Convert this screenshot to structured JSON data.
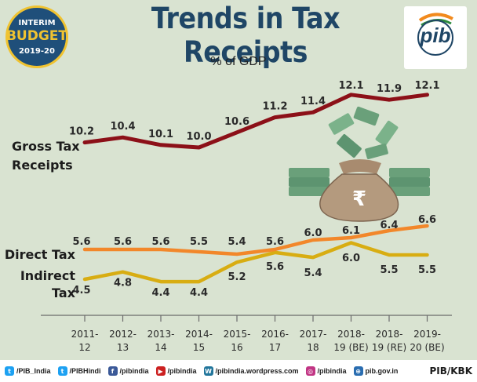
{
  "header": {
    "title": "Trends in Tax Receipts",
    "subtitle": "% of GDP",
    "badge": {
      "line1": "INTERIM",
      "line2": "BUDGET",
      "line3": "2019-20"
    },
    "logo_text": "pib"
  },
  "colors": {
    "background": "#d9e3d1",
    "gross": "#8c1018",
    "direct": "#f2872a",
    "indirect": "#d8ad12",
    "title": "#1f4666"
  },
  "chart_data": {
    "type": "line",
    "title": "Trends in Tax Receipts",
    "subtitle": "% of GDP",
    "categories": [
      "2011-12",
      "2012-13",
      "2013-14",
      "2014-15",
      "2015-16",
      "2016-17",
      "2017-18",
      "2018-19 (BE)",
      "2018-19 (RE)",
      "2019-20 (BE)"
    ],
    "tick_labels": [
      [
        "2011-",
        "12"
      ],
      [
        "2012-",
        "13"
      ],
      [
        "2013-",
        "14"
      ],
      [
        "2014-",
        "15"
      ],
      [
        "2015-",
        "16"
      ],
      [
        "2016-",
        "17"
      ],
      [
        "2017-",
        "18"
      ],
      [
        "2018-",
        "19 (BE)"
      ],
      [
        "2018-",
        "19 (RE)"
      ],
      [
        "2019-",
        "20 (BE)"
      ]
    ],
    "series": [
      {
        "name": "Gross Tax Receipts",
        "name_lines": [
          "Gross Tax",
          "Receipts"
        ],
        "key": "gross",
        "values": [
          10.2,
          10.4,
          10.1,
          10.0,
          10.6,
          11.2,
          11.4,
          12.1,
          11.9,
          12.1
        ]
      },
      {
        "name": "Direct Tax",
        "name_lines": [
          "Direct Tax"
        ],
        "key": "direct",
        "values": [
          5.6,
          5.6,
          5.6,
          5.5,
          5.4,
          5.6,
          6.0,
          6.1,
          6.4,
          6.6
        ]
      },
      {
        "name": "Indirect Tax",
        "name_lines": [
          "Indirect",
          "Tax"
        ],
        "key": "indirect",
        "values": [
          4.5,
          4.8,
          4.4,
          4.4,
          5.2,
          5.6,
          5.4,
          6.0,
          5.5,
          5.5
        ]
      }
    ],
    "xlabel": "",
    "ylabel": "",
    "grid": false,
    "legend": "left (series names next to lines)"
  },
  "footer": {
    "items": [
      {
        "icon": "twitter-icon",
        "color": "#1da1f2",
        "glyph": "t",
        "text": "/PIB_India"
      },
      {
        "icon": "twitter-icon",
        "color": "#1da1f2",
        "glyph": "t",
        "text": "/PIBHindi"
      },
      {
        "icon": "facebook-icon",
        "color": "#3b5998",
        "glyph": "f",
        "text": "/pibindia"
      },
      {
        "icon": "youtube-icon",
        "color": "#cc2020",
        "glyph": "▶",
        "text": "/pibindia"
      },
      {
        "icon": "wordpress-icon",
        "color": "#21759b",
        "glyph": "W",
        "text": "/pibindia.wordpress.com"
      },
      {
        "icon": "instagram-icon",
        "color": "#c13584",
        "glyph": "◎",
        "text": "/pibindia"
      },
      {
        "icon": "globe-icon",
        "color": "#2a6db0",
        "glyph": "⊕",
        "text": "pib.gov.in"
      }
    ],
    "credit": "PIB/KBK"
  }
}
